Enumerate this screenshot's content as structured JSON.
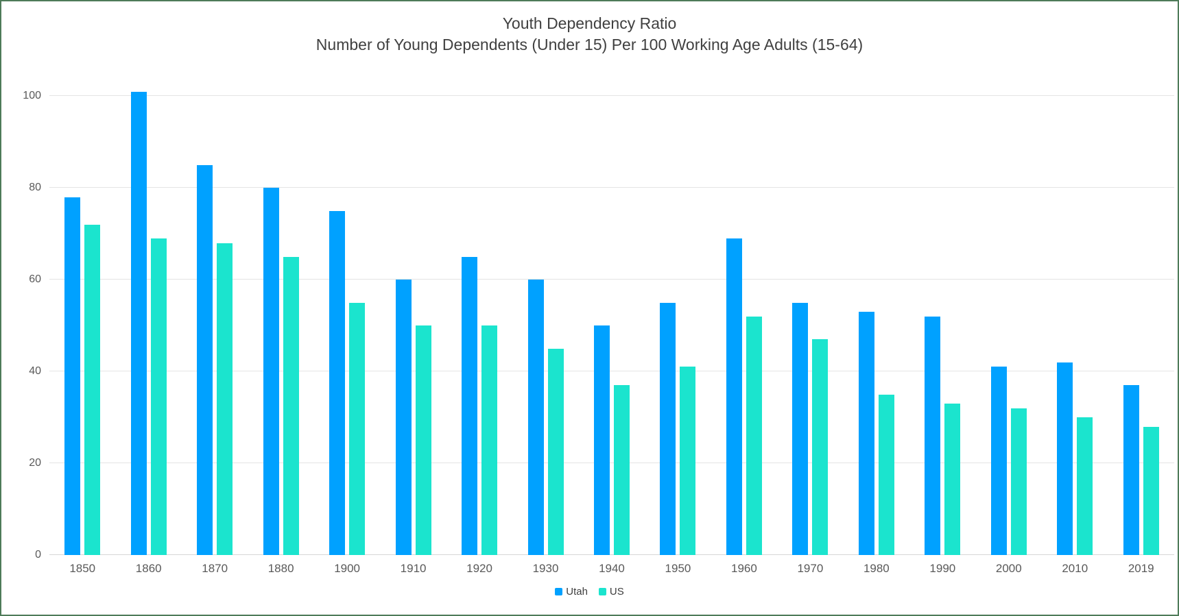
{
  "window": {
    "background": "#ffffff",
    "border_color": "#4e7b58"
  },
  "chart_data": {
    "type": "bar",
    "title": "Youth Dependency Ratio",
    "subtitle": "Number of Young Dependents (Under 15) Per 100 Working Age Adults (15-64)",
    "categories": [
      "1850",
      "1860",
      "1870",
      "1880",
      "1900",
      "1910",
      "1920",
      "1930",
      "1940",
      "1950",
      "1960",
      "1970",
      "1980",
      "1990",
      "2000",
      "2010",
      "2019"
    ],
    "series": [
      {
        "name": "Utah",
        "color": "#00a1ff",
        "values": [
          78,
          101,
          85,
          80,
          75,
          60,
          65,
          60,
          50,
          55,
          69,
          55,
          53,
          52,
          41,
          42,
          37
        ]
      },
      {
        "name": "US",
        "color": "#1be4ce",
        "values": [
          72,
          69,
          68,
          65,
          55,
          50,
          50,
          45,
          37,
          41,
          52,
          47,
          35,
          33,
          32,
          30,
          28
        ]
      }
    ],
    "xlabel": "",
    "ylabel": "",
    "y_ticks": [
      0,
      20,
      40,
      60,
      80,
      100
    ],
    "ylim": [
      0,
      102
    ],
    "grid": "horizontal",
    "gridline_color": "#e4e4e4",
    "axis_text_color": "#595959",
    "legend_position": "bottom-center"
  }
}
